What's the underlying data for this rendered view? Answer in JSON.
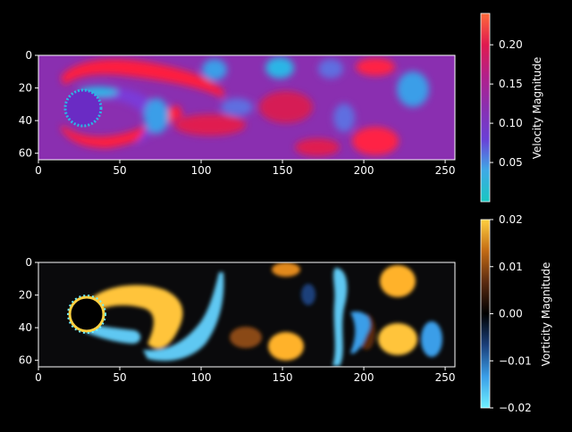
{
  "chart_data": [
    {
      "type": "heatmap",
      "title": "",
      "xlabel": "",
      "ylabel": "",
      "xlim": [
        0,
        256
      ],
      "ylim": [
        64,
        0
      ],
      "xticks": [
        "0",
        "50",
        "100",
        "150",
        "200",
        "250"
      ],
      "yticks": [
        "0",
        "20",
        "40",
        "60"
      ],
      "colorbar": {
        "label": "Velocity Magnitude",
        "range": [
          0.0,
          0.24
        ],
        "ticks": [
          "0.05",
          "0.10",
          "0.15",
          "0.20"
        ],
        "colors": [
          "#19c7c1",
          "#3fa9e6",
          "#6a3fd6",
          "#8a2fb0",
          "#b2208a",
          "#e01a4f",
          "#ff6a3a"
        ]
      },
      "features": {
        "background": "#8a2fb0",
        "cylinder_color": "#6a2bc4",
        "high_speed_color": "#ff1e3c",
        "low_speed_color": "#2bb5e6"
      }
    },
    {
      "type": "heatmap",
      "title": "",
      "xlabel": "",
      "ylabel": "",
      "xlim": [
        0,
        256
      ],
      "ylim": [
        64,
        0
      ],
      "xticks": [
        "0",
        "50",
        "100",
        "150",
        "200",
        "250"
      ],
      "yticks": [
        "0",
        "20",
        "40",
        "60"
      ],
      "colorbar": {
        "label": "Vorticity Magnitude",
        "range": [
          -0.02,
          0.02
        ],
        "ticks": [
          "0.02",
          "0.01",
          "0.00",
          "−0.01",
          "−0.02"
        ],
        "colors": [
          "#6ff0ff",
          "#3a9ee8",
          "#1a3f7a",
          "#000000",
          "#5a2a10",
          "#c26a14",
          "#ffd040"
        ]
      },
      "features": {
        "background": "#0a0a0c",
        "positive_color": "#ffc43a",
        "negative_color": "#5ec8f2",
        "cylinder_color": "#000000"
      }
    }
  ]
}
